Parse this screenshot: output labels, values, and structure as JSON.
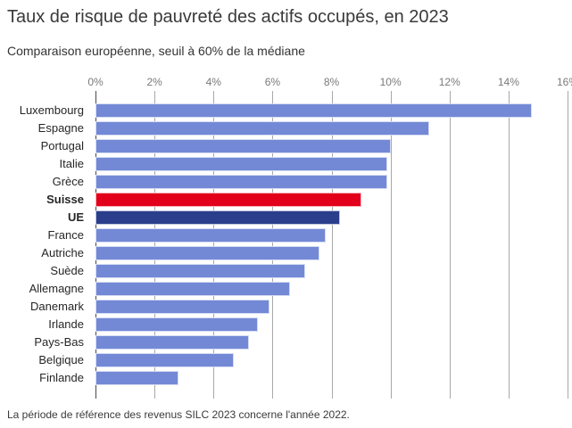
{
  "header": {
    "title": "Taux de risque de pauvreté des actifs occupés, en 2023",
    "subtitle": "Comparaison européenne, seuil à 60% de la médiane"
  },
  "footnote": "La période de référence des revenus SILC 2023 concerne l'année 2022.",
  "colors": {
    "bar_default": "#7389d6",
    "bar_switzerland": "#e2001a",
    "bar_eu": "#2b3e8c",
    "gridline": "#a8a8a8",
    "axis_zero_line": "#4a4a4a",
    "tick_label": "#7a7a7a",
    "category_label": "#262626"
  },
  "chart_data": {
    "type": "bar",
    "orientation": "horizontal",
    "title": "Taux de risque de pauvreté des actifs occupés, en 2023",
    "subtitle": "Comparaison européenne, seuil à 60% de la médiane",
    "footnote": "La période de référence des revenus SILC 2023 concerne l'année 2022.",
    "xlabel": "",
    "ylabel": "",
    "xlim": [
      0,
      16
    ],
    "x_tick_labels": [
      "0%",
      "2%",
      "4%",
      "6%",
      "8%",
      "10%",
      "12%",
      "14%",
      "16%"
    ],
    "grid": true,
    "legend": false,
    "bars": [
      {
        "label": "Luxembourg",
        "value": 14.8,
        "color_key": "bar_default",
        "bold": false
      },
      {
        "label": "Espagne",
        "value": 11.3,
        "color_key": "bar_default",
        "bold": false
      },
      {
        "label": "Portugal",
        "value": 10.0,
        "color_key": "bar_default",
        "bold": false
      },
      {
        "label": "Italie",
        "value": 9.9,
        "color_key": "bar_default",
        "bold": false
      },
      {
        "label": "Grèce",
        "value": 9.9,
        "color_key": "bar_default",
        "bold": false
      },
      {
        "label": "Suisse",
        "value": 9.0,
        "color_key": "bar_switzerland",
        "bold": true
      },
      {
        "label": "UE",
        "value": 8.3,
        "color_key": "bar_eu",
        "bold": true
      },
      {
        "label": "France",
        "value": 7.8,
        "color_key": "bar_default",
        "bold": false
      },
      {
        "label": "Autriche",
        "value": 7.6,
        "color_key": "bar_default",
        "bold": false
      },
      {
        "label": "Suède",
        "value": 7.1,
        "color_key": "bar_default",
        "bold": false
      },
      {
        "label": "Allemagne",
        "value": 6.6,
        "color_key": "bar_default",
        "bold": false
      },
      {
        "label": "Danemark",
        "value": 5.9,
        "color_key": "bar_default",
        "bold": false
      },
      {
        "label": "Irlande",
        "value": 5.5,
        "color_key": "bar_default",
        "bold": false
      },
      {
        "label": "Pays-Bas",
        "value": 5.2,
        "color_key": "bar_default",
        "bold": false
      },
      {
        "label": "Belgique",
        "value": 4.7,
        "color_key": "bar_default",
        "bold": false
      },
      {
        "label": "Finlande",
        "value": 2.8,
        "color_key": "bar_default",
        "bold": false
      }
    ]
  }
}
